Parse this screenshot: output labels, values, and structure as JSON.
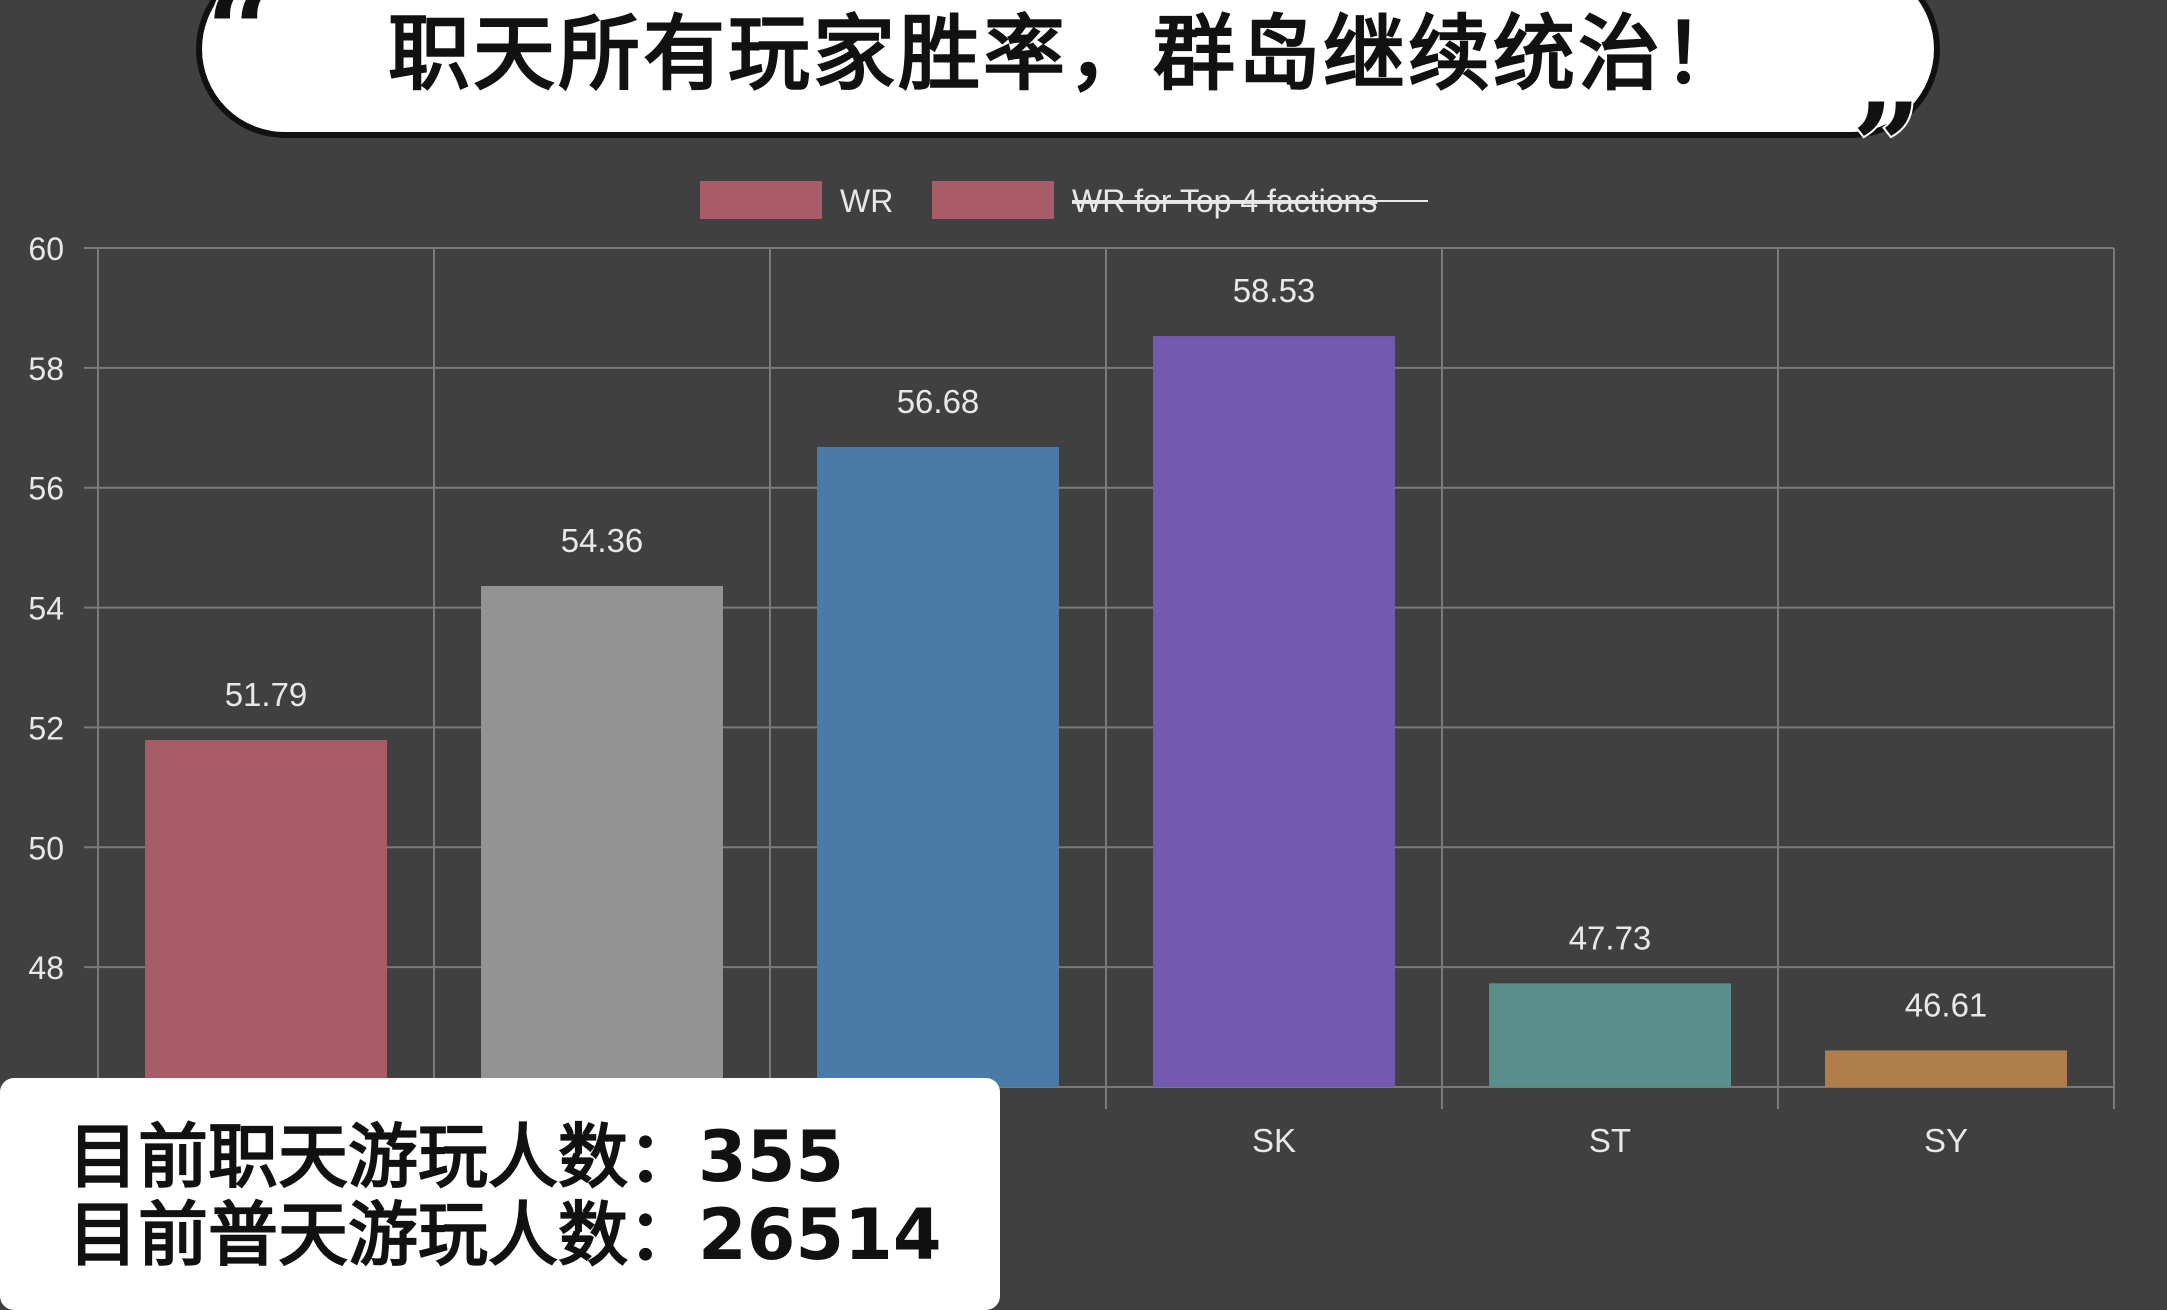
{
  "title": "职天所有玩家胜率，群岛继续统治！",
  "quote_open": "“",
  "quote_close": "”",
  "info": {
    "line1_label": "目前职天游玩人数：",
    "line1_value": "355",
    "line2_label": "目前普天游玩人数：",
    "line2_value": "26514"
  },
  "chart_data": {
    "type": "bar",
    "categories": [
      "",
      "",
      "",
      "SK",
      "ST",
      "SY"
    ],
    "values": [
      51.79,
      54.36,
      56.68,
      58.53,
      47.73,
      46.61
    ],
    "value_labels": [
      "51.79",
      "54.36",
      "56.68",
      "58.53",
      "47.73",
      "46.61"
    ],
    "colors": [
      "#a85c68",
      "#939393",
      "#4a7aa6",
      "#735ab0",
      "#5a8e8a",
      "#b07e4a"
    ],
    "ylim": [
      46,
      60
    ],
    "yticks": [
      "48",
      "50",
      "52",
      "54",
      "56",
      "58",
      "60"
    ],
    "grid": true,
    "legend": [
      {
        "label": "WR",
        "color": "#a85c68",
        "hidden": false
      },
      {
        "label": "WR for Top 4 factions",
        "color": "#a85c68",
        "hidden": true
      }
    ],
    "legend_position": "top-center"
  }
}
